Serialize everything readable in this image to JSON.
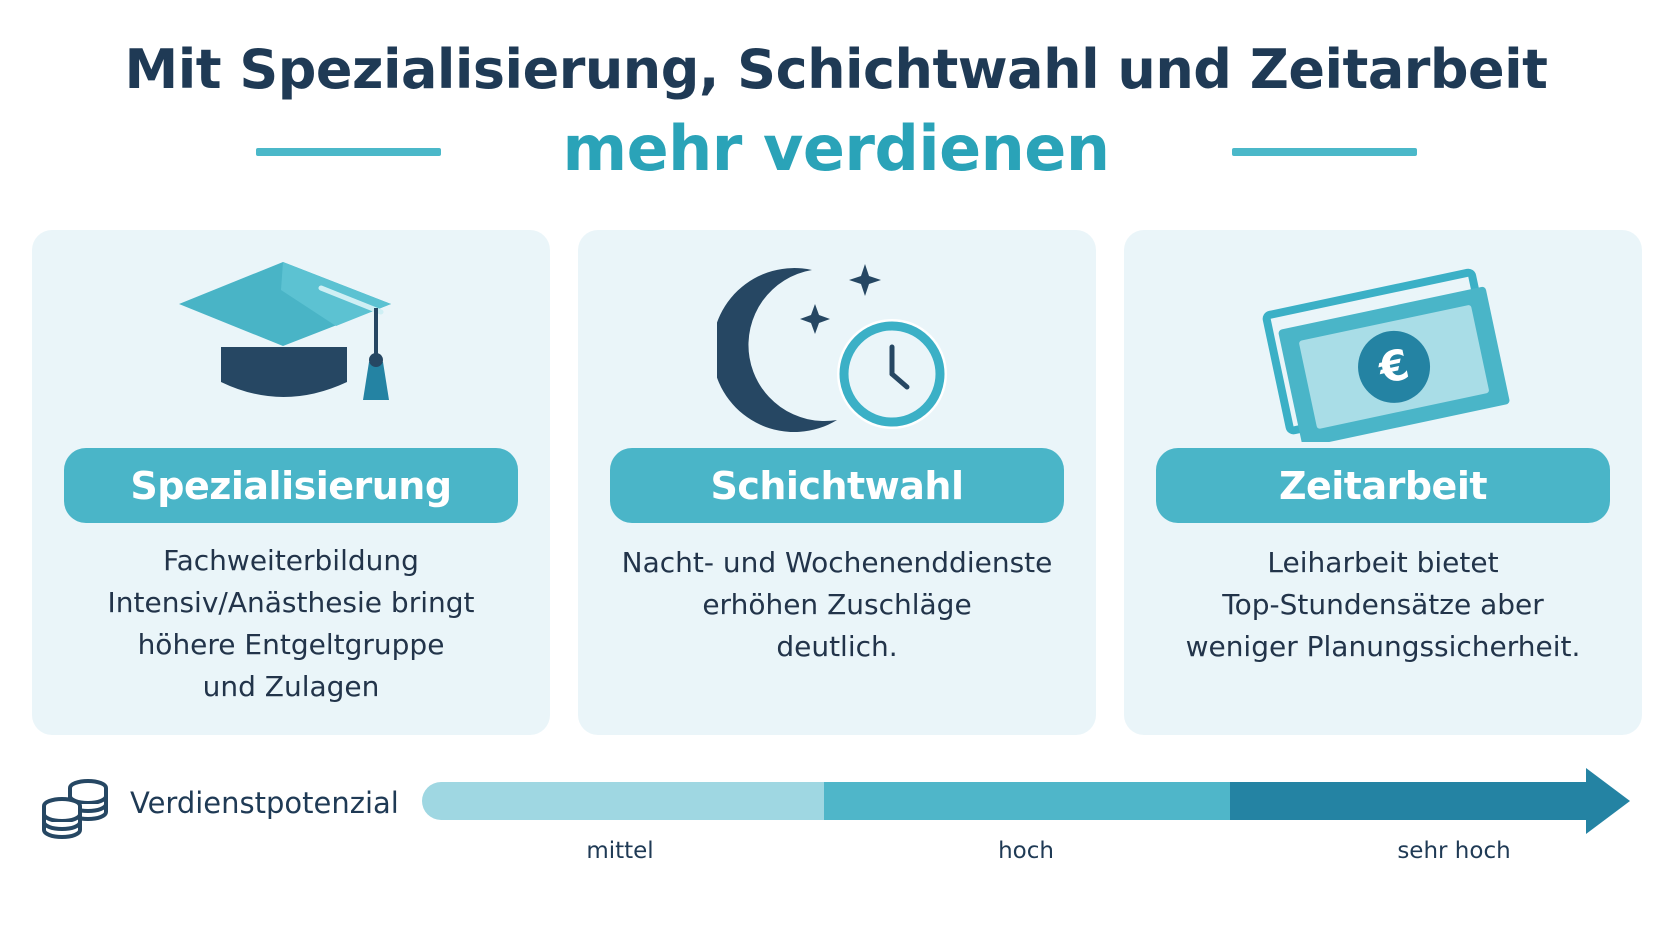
{
  "title": {
    "line1": "Mit Spezialisierung, Schichtwahl und Zeitarbeit",
    "line2": "mehr verdienen"
  },
  "cards": [
    {
      "icon": "graduation-cap-icon",
      "label": "Spezialisierung",
      "lines": [
        "Fachweiterbildung",
        "Intensiv/Anästhesie bringt",
        "höhere Entgeltgruppe",
        "und Zulagen"
      ]
    },
    {
      "icon": "moon-clock-icon",
      "label": "Schichtwahl",
      "lines": [
        "Nacht- und Wochenenddienste",
        "erhöhen Zuschläge",
        "deutlich."
      ]
    },
    {
      "icon": "euro-banknotes-icon",
      "label": "Zeitarbeit",
      "lines": [
        "Leiharbeit bietet",
        "Top-Stundensätze aber",
        "weniger Planungssicherheit."
      ]
    }
  ],
  "scale": {
    "icon": "coins-stack-icon",
    "label": "Verdienstpotenzial",
    "levels": [
      "mittel",
      "hoch",
      "sehr hoch"
    ]
  },
  "colors": {
    "navy": "#1f3a55",
    "teal": "#2aa3b8",
    "pill": "#4ab5c8",
    "card_bg": "#eaf5f9",
    "scale_light": "#9fd7e2",
    "scale_mid": "#4fb6c9",
    "scale_dark": "#2483a3"
  }
}
